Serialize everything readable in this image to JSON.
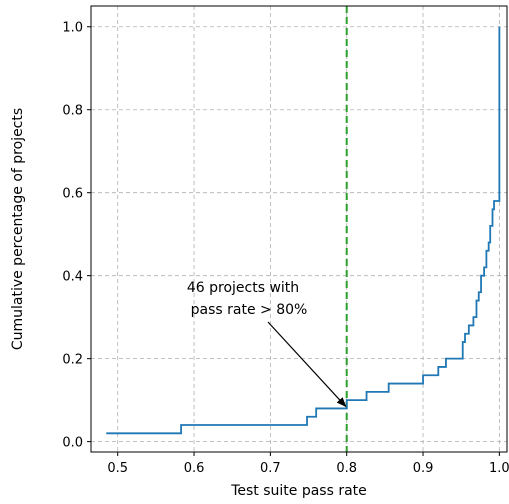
{
  "chart_data": {
    "type": "line",
    "step": "post",
    "xlabel": "Test suite pass rate",
    "ylabel": "Cumulative percentage of projects",
    "xlim": [
      0.465,
      1.01
    ],
    "ylim": [
      -0.025,
      1.05
    ],
    "xticks": [
      {
        "value": 0.5,
        "label": "0.5"
      },
      {
        "value": 0.6,
        "label": "0.6"
      },
      {
        "value": 0.7,
        "label": "0.7"
      },
      {
        "value": 0.8,
        "label": "0.8"
      },
      {
        "value": 0.9,
        "label": "0.9"
      },
      {
        "value": 1.0,
        "label": "1.0"
      }
    ],
    "yticks": [
      {
        "value": 0.0,
        "label": "0.0"
      },
      {
        "value": 0.2,
        "label": "0.2"
      },
      {
        "value": 0.4,
        "label": "0.4"
      },
      {
        "value": 0.6,
        "label": "0.6"
      },
      {
        "value": 0.8,
        "label": "0.8"
      },
      {
        "value": 1.0,
        "label": "1.0"
      }
    ],
    "grid": true,
    "grid_style": "dashed",
    "series": [
      {
        "color": "#1f77b4",
        "x": [
          0.485,
          0.583,
          0.748,
          0.76,
          0.8,
          0.826,
          0.855,
          0.9,
          0.92,
          0.93,
          0.952,
          0.955,
          0.96,
          0.966,
          0.97,
          0.973,
          0.976,
          0.98,
          0.983,
          0.986,
          0.988,
          0.991,
          0.993,
          0.995,
          0.997,
          0.999,
          1.0
        ],
        "y": [
          0.02,
          0.04,
          0.06,
          0.08,
          0.1,
          0.12,
          0.14,
          0.16,
          0.18,
          0.2,
          0.24,
          0.26,
          0.28,
          0.3,
          0.34,
          0.36,
          0.4,
          0.42,
          0.46,
          0.48,
          0.52,
          0.56,
          0.58,
          0.58,
          0.58,
          0.58,
          1.0
        ]
      }
    ],
    "threshold_line": {
      "x": 0.8,
      "color": "#2ca02c",
      "style": "dashed"
    },
    "annotation": {
      "lines": [
        "46 projects with",
        "pass rate > 80%"
      ],
      "target": {
        "x": 0.8,
        "y": 0.08
      }
    }
  }
}
